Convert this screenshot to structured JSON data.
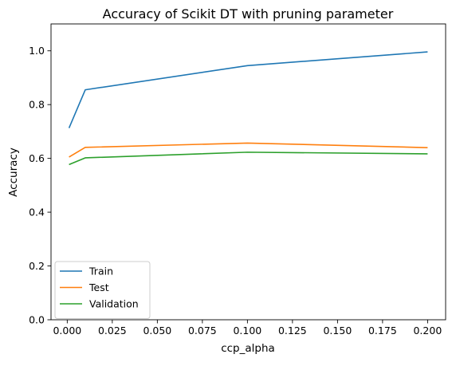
{
  "chart_data": {
    "type": "line",
    "title": "Accuracy of Scikit DT with pruning parameter",
    "xlabel": "ccp_alpha",
    "ylabel": "Accuracy",
    "x": [
      0.001,
      0.01,
      0.1,
      0.2
    ],
    "series": [
      {
        "name": "Train",
        "color": "#1f77b4",
        "values": [
          0.713,
          0.855,
          0.945,
          0.996
        ]
      },
      {
        "name": "Test",
        "color": "#ff7f0e",
        "values": [
          0.605,
          0.641,
          0.657,
          0.64
        ]
      },
      {
        "name": "Validation",
        "color": "#2ca02c",
        "values": [
          0.577,
          0.602,
          0.623,
          0.617
        ]
      }
    ],
    "xlim": [
      -0.009,
      0.21
    ],
    "ylim": [
      0.0,
      1.1
    ],
    "xticks": [
      0.0,
      0.025,
      0.05,
      0.075,
      0.1,
      0.125,
      0.15,
      0.175,
      0.2
    ],
    "xtick_labels": [
      "0.000",
      "0.025",
      "0.050",
      "0.075",
      "0.100",
      "0.125",
      "0.150",
      "0.175",
      "0.200"
    ],
    "yticks": [
      0.0,
      0.2,
      0.4,
      0.6,
      0.8,
      1.0
    ],
    "ytick_labels": [
      "0.0",
      "0.2",
      "0.4",
      "0.6",
      "0.8",
      "1.0"
    ],
    "grid": false,
    "legend_position": "lower-left"
  }
}
